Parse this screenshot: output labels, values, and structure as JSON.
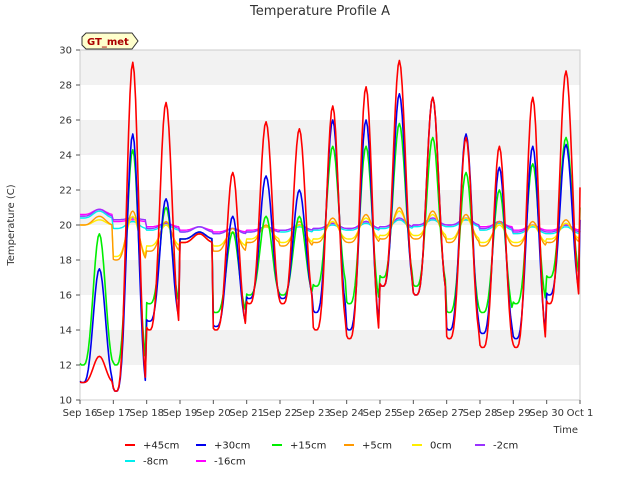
{
  "chart_data": {
    "type": "line",
    "title": "Temperature Profile A",
    "xlabel": "Time",
    "ylabel": "Temperature (C)",
    "ylim": [
      10,
      30
    ],
    "yticks": [
      10,
      12,
      14,
      16,
      18,
      20,
      22,
      24,
      26,
      28,
      30
    ],
    "xlim": [
      "2024-09-16",
      "2024-10-01"
    ],
    "xticks": [
      "Sep 16",
      "Sep 17",
      "Sep 18",
      "Sep 19",
      "Sep 20",
      "Sep 21",
      "Sep 22",
      "Sep 23",
      "Sep 24",
      "Sep 25",
      "Sep 26",
      "Sep 27",
      "Sep 28",
      "Sep 29",
      "Sep 30",
      "Oct 1"
    ],
    "grid": "horizontal bands",
    "legend_position": "bottom",
    "annotation": "GT_met",
    "x": [
      "2024-09-16",
      "2024-09-17",
      "2024-09-18",
      "2024-09-19",
      "2024-09-20",
      "2024-09-21",
      "2024-09-22",
      "2024-09-23",
      "2024-09-24",
      "2024-09-25",
      "2024-09-26",
      "2024-09-27",
      "2024-09-28",
      "2024-09-29",
      "2024-09-30"
    ],
    "daily": {
      "+45cm": {
        "min": [
          11.0,
          10.5,
          14.0,
          19.0,
          14.0,
          15.5,
          15.5,
          14.0,
          13.5,
          16.5,
          16.0,
          13.5,
          13.0,
          13.0,
          15.5
        ],
        "max": [
          12.5,
          29.3,
          27.0,
          19.5,
          23.0,
          25.9,
          25.5,
          26.8,
          27.9,
          29.4,
          27.3,
          25.0,
          24.5,
          27.3,
          28.8
        ]
      },
      "+30cm": {
        "min": [
          11.0,
          10.5,
          14.5,
          19.2,
          14.2,
          15.8,
          15.8,
          15.0,
          14.0,
          16.5,
          16.0,
          14.0,
          13.8,
          13.5,
          16.0
        ],
        "max": [
          17.5,
          25.2,
          21.5,
          19.6,
          20.5,
          22.8,
          22.0,
          26.0,
          26.0,
          27.5,
          27.3,
          25.2,
          23.3,
          24.5,
          24.6
        ]
      },
      "+15cm": {
        "min": [
          12.0,
          12.0,
          15.5,
          19.2,
          15.0,
          16.0,
          16.0,
          16.5,
          15.5,
          17.0,
          16.5,
          15.0,
          15.0,
          15.5,
          17.0
        ],
        "max": [
          19.5,
          24.3,
          21.0,
          19.6,
          19.6,
          20.5,
          20.5,
          24.5,
          24.5,
          25.8,
          25.0,
          23.0,
          22.0,
          23.5,
          25.0
        ]
      },
      "+5cm": {
        "min": [
          20.0,
          18.0,
          18.5,
          19.0,
          18.5,
          19.0,
          18.8,
          19.0,
          19.0,
          19.2,
          19.2,
          19.0,
          18.8,
          18.8,
          19.0
        ],
        "max": [
          20.5,
          20.8,
          20.2,
          19.5,
          19.8,
          20.0,
          20.2,
          20.4,
          20.6,
          21.0,
          20.8,
          20.6,
          20.2,
          20.2,
          20.3
        ]
      },
      "0cm": {
        "min": [
          20.0,
          18.2,
          18.8,
          19.0,
          18.8,
          19.2,
          19.0,
          19.2,
          19.2,
          19.4,
          19.4,
          19.2,
          19.0,
          19.0,
          19.2
        ],
        "max": [
          20.3,
          20.5,
          20.0,
          19.5,
          19.6,
          19.9,
          20.0,
          20.2,
          20.4,
          20.8,
          20.6,
          20.4,
          20.0,
          20.0,
          20.1
        ]
      },
      "-2cm": {
        "min": [
          20.5,
          20.3,
          19.8,
          19.6,
          19.5,
          19.6,
          19.7,
          19.8,
          19.8,
          19.9,
          20.0,
          20.0,
          19.8,
          19.6,
          19.6
        ],
        "max": [
          20.9,
          20.4,
          20.1,
          19.9,
          19.8,
          19.9,
          20.0,
          20.1,
          20.2,
          20.4,
          20.4,
          20.4,
          20.2,
          20.0,
          20.0
        ]
      },
      "-8cm": {
        "min": [
          20.4,
          19.8,
          19.7,
          19.6,
          19.5,
          19.6,
          19.6,
          19.7,
          19.7,
          19.8,
          19.9,
          19.9,
          19.7,
          19.5,
          19.5
        ],
        "max": [
          20.8,
          20.2,
          20.0,
          19.9,
          19.8,
          19.9,
          19.9,
          20.0,
          20.1,
          20.3,
          20.3,
          20.3,
          20.1,
          19.9,
          19.9
        ]
      },
      "-16cm": {
        "min": [
          20.6,
          20.2,
          19.9,
          19.7,
          19.6,
          19.7,
          19.7,
          19.8,
          19.8,
          19.9,
          20.0,
          20.0,
          19.9,
          19.7,
          19.7
        ],
        "max": [
          20.9,
          20.3,
          20.1,
          19.9,
          19.8,
          19.9,
          20.0,
          20.1,
          20.2,
          20.3,
          20.3,
          20.3,
          20.1,
          20.0,
          20.0
        ]
      }
    },
    "series": [
      {
        "name": "+45cm",
        "color": "#ff0000",
        "width": 1.6
      },
      {
        "name": "+30cm",
        "color": "#0000ee",
        "width": 1.6
      },
      {
        "name": "+15cm",
        "color": "#00ee00",
        "width": 1.6
      },
      {
        "name": "+5cm",
        "color": "#ff9900",
        "width": 1.4
      },
      {
        "name": "0cm",
        "color": "#ffee00",
        "width": 1.4
      },
      {
        "name": "-2cm",
        "color": "#9933ff",
        "width": 1.4
      },
      {
        "name": "-8cm",
        "color": "#00eeee",
        "width": 1.4
      },
      {
        "name": "-16cm",
        "color": "#ff00ff",
        "width": 1.4
      }
    ]
  }
}
